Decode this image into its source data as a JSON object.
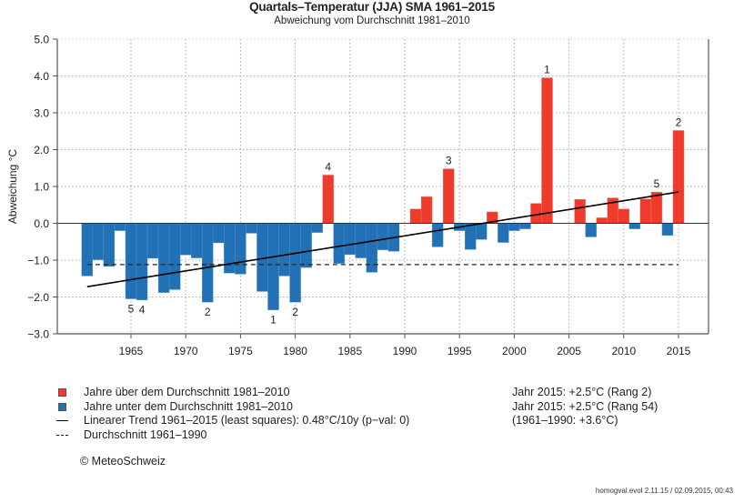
{
  "chart_data": {
    "type": "bar",
    "title": "Quartals–Temperatur (JJA) SMA 1961–2015",
    "subtitle": "Abweichung vom Durchschnitt 1981–2010",
    "xlabel": "",
    "ylabel": "Abweichung °C",
    "ylim": [
      -3.0,
      5.0
    ],
    "yticks": [
      -3.0,
      -2.0,
      -1.0,
      0.0,
      1.0,
      2.0,
      3.0,
      4.0,
      5.0
    ],
    "ytick_labels": [
      "−3.0",
      "−2.0",
      "−1.0",
      "0.0",
      "1.0",
      "2.0",
      "3.0",
      "4.0",
      "5.0"
    ],
    "xlim": [
      1959,
      2017.7
    ],
    "xticks": [
      1965,
      1970,
      1975,
      1980,
      1985,
      1990,
      1995,
      2000,
      2005,
      2010,
      2015
    ],
    "xtick_labels": [
      "1965",
      "1970",
      "1975",
      "1980",
      "1985",
      "1990",
      "1995",
      "2000",
      "2005",
      "2010",
      "2015"
    ],
    "grid": true,
    "x": [
      1961,
      1962,
      1963,
      1964,
      1965,
      1966,
      1967,
      1968,
      1969,
      1970,
      1971,
      1972,
      1973,
      1974,
      1975,
      1976,
      1977,
      1978,
      1979,
      1980,
      1981,
      1982,
      1983,
      1984,
      1985,
      1986,
      1987,
      1988,
      1989,
      1990,
      1991,
      1992,
      1993,
      1994,
      1995,
      1996,
      1997,
      1998,
      1999,
      2000,
      2001,
      2002,
      2003,
      2004,
      2005,
      2006,
      2007,
      2008,
      2009,
      2010,
      2011,
      2012,
      2013,
      2014,
      2015
    ],
    "values": [
      -1.43,
      -0.99,
      -1.17,
      -0.2,
      -2.05,
      -2.08,
      -0.95,
      -1.88,
      -1.8,
      -0.86,
      -0.94,
      -2.14,
      -0.53,
      -1.35,
      -1.38,
      -0.27,
      -1.85,
      -2.35,
      -1.43,
      -2.14,
      -1.2,
      -0.25,
      1.31,
      -1.09,
      -0.85,
      -0.94,
      -1.33,
      -0.72,
      -0.76,
      0.0,
      0.39,
      0.72,
      -0.64,
      1.48,
      -0.2,
      -0.71,
      -0.44,
      0.31,
      -0.52,
      -0.2,
      -0.15,
      0.54,
      3.95,
      0.0,
      0.0,
      0.65,
      -0.37,
      0.15,
      0.69,
      0.39,
      -0.15,
      0.66,
      0.85,
      -0.33,
      2.52
    ],
    "colors": {
      "above": "#ee3b2b",
      "below": "#2271b5",
      "trend": "#000000",
      "mean": "#222222"
    },
    "rank_labels": [
      {
        "year": 2003,
        "label": "1",
        "position": "above"
      },
      {
        "year": 2015,
        "label": "2",
        "position": "above"
      },
      {
        "year": 1994,
        "label": "3",
        "position": "above"
      },
      {
        "year": 1983,
        "label": "4",
        "position": "above"
      },
      {
        "year": 2013,
        "label": "5",
        "position": "above"
      },
      {
        "year": 1978,
        "label": "1",
        "position": "below"
      },
      {
        "year": 1980,
        "label": "2",
        "position": "below"
      },
      {
        "year": 1972,
        "label": "2",
        "position": "below"
      },
      {
        "year": 1966,
        "label": "4",
        "position": "below"
      },
      {
        "year": 1965,
        "label": "5",
        "position": "below"
      }
    ],
    "trend": {
      "x0": 1961,
      "y0": -1.72,
      "x1": 2015,
      "y1": 0.85
    },
    "mean_1961_1990": {
      "x0": 1961,
      "x1": 2015,
      "y": -1.12
    },
    "legend": [
      {
        "kind": "swatch-above",
        "label": "Jahre über dem Durchschnitt 1981–2010"
      },
      {
        "kind": "swatch-below",
        "label": "Jahre unter dem Durchschnitt 1981–2010"
      },
      {
        "kind": "line",
        "label": "Linearer Trend 1961–2015 (least squares): 0.48°C/10y (p−val: 0)"
      },
      {
        "kind": "dash",
        "label": "Durchschnitt 1961–1990"
      }
    ],
    "legend_position": "bottom-left"
  },
  "stats": [
    "Jahr 2015: +2.5°C (Rang 2)",
    "Jahr 2015: +2.5°C (Rang 54)",
    "(1961–1990: +3.6°C)"
  ],
  "copyright": "© MeteoSchweiz",
  "footer": "homogval.evol 2.11.15 / 02.09.2015, 00:43"
}
